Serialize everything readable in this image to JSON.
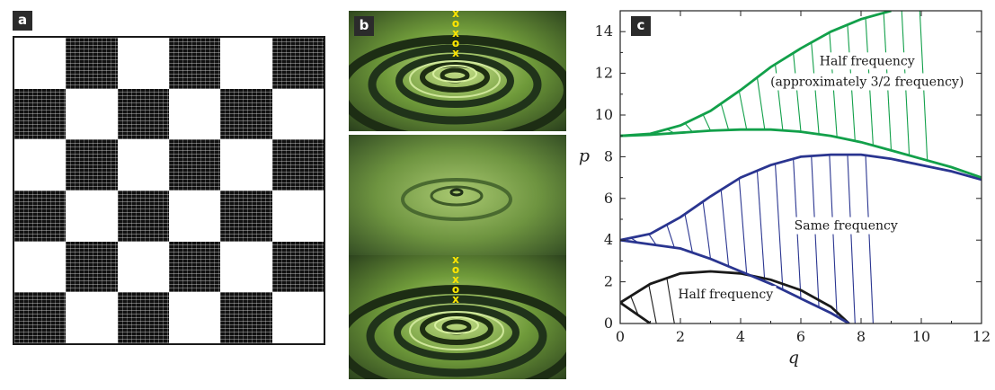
{
  "panels": {
    "a": {
      "label": "a"
    },
    "b": {
      "label": "b",
      "markers": [
        "x",
        "o",
        "x",
        "o",
        "x"
      ]
    },
    "c": {
      "label": "c"
    }
  },
  "chart_data": {
    "type": "line",
    "title": "",
    "xlabel": "q",
    "ylabel": "p",
    "xlim": [
      0,
      12
    ],
    "ylim": [
      0,
      15
    ],
    "xticks": [
      0,
      2,
      4,
      6,
      8,
      10,
      12
    ],
    "yticks": [
      0,
      2,
      4,
      6,
      8,
      10,
      12,
      14
    ],
    "regions": [
      {
        "name": "Half frequency",
        "color": "#1a1a1a",
        "lower": [
          [
            0,
            1
          ],
          [
            1,
            0
          ]
        ],
        "upper": [
          [
            0,
            1
          ],
          [
            1,
            1.9
          ],
          [
            2,
            2.4
          ],
          [
            3,
            2.5
          ],
          [
            4,
            2.4
          ],
          [
            5,
            2.1
          ],
          [
            6,
            1.6
          ],
          [
            7,
            0.8
          ],
          [
            7.6,
            0
          ]
        ]
      },
      {
        "name": "Same frequency",
        "color": "#2a3590",
        "lower": [
          [
            0,
            4
          ],
          [
            2,
            3.6
          ],
          [
            3,
            3.1
          ],
          [
            4,
            2.5
          ],
          [
            5,
            1.9
          ],
          [
            6,
            1.2
          ],
          [
            7,
            0.5
          ],
          [
            7.6,
            0
          ]
        ],
        "upper": [
          [
            0,
            4
          ],
          [
            1,
            4.3
          ],
          [
            2,
            5.1
          ],
          [
            3,
            6.1
          ],
          [
            4,
            7.0
          ],
          [
            5,
            7.6
          ],
          [
            6,
            8.0
          ],
          [
            7,
            8.1
          ],
          [
            8,
            8.1
          ],
          [
            9,
            7.9
          ],
          [
            10,
            7.6
          ],
          [
            11,
            7.3
          ],
          [
            12,
            6.9
          ]
        ]
      },
      {
        "name": "Half frequency (approximately 3/2 frequency)",
        "color": "#12a04a",
        "lower": [
          [
            0,
            9
          ],
          [
            1,
            9.05
          ],
          [
            2,
            9.15
          ],
          [
            3,
            9.25
          ],
          [
            4,
            9.3
          ],
          [
            5,
            9.3
          ],
          [
            6,
            9.2
          ],
          [
            7,
            9.0
          ],
          [
            8,
            8.7
          ],
          [
            9,
            8.3
          ],
          [
            10,
            7.9
          ],
          [
            11,
            7.5
          ],
          [
            12,
            7.0
          ]
        ],
        "upper": [
          [
            0,
            9
          ],
          [
            1,
            9.1
          ],
          [
            2,
            9.5
          ],
          [
            3,
            10.2
          ],
          [
            4,
            11.2
          ],
          [
            5,
            12.3
          ],
          [
            6,
            13.2
          ],
          [
            7,
            14.0
          ],
          [
            8,
            14.6
          ],
          [
            9,
            15
          ]
        ]
      }
    ],
    "annotations": [
      {
        "text": "Half frequency",
        "x": 3.5,
        "y": 1.2
      },
      {
        "text": "Same frequency",
        "x": 7.5,
        "y": 4.5
      },
      {
        "text": "Half frequency",
        "x": 8.2,
        "y": 12.4
      },
      {
        "text": "(approximately 3/2 frequency)",
        "x": 8.2,
        "y": 11.4
      }
    ]
  }
}
